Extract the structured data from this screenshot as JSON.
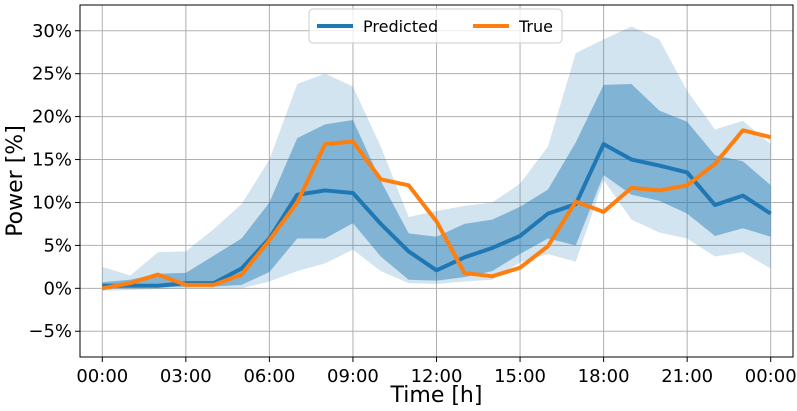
{
  "chart_data": {
    "type": "line",
    "xlabel": "Time [h]",
    "ylabel": "Power [%]",
    "x_ticks": [
      "00:00",
      "03:00",
      "06:00",
      "09:00",
      "12:00",
      "15:00",
      "18:00",
      "21:00",
      "00:00"
    ],
    "y_ticks": [
      "−5%",
      "0%",
      "5%",
      "10%",
      "15%",
      "20%",
      "25%",
      "30%"
    ],
    "xlim": [
      -0.8,
      24.8
    ],
    "ylim": [
      -8,
      33
    ],
    "grid": true,
    "legend_position": "top-center",
    "x_hours": [
      0,
      1,
      2,
      3,
      4,
      5,
      6,
      7,
      8,
      9,
      10,
      11,
      12,
      13,
      14,
      15,
      16,
      17,
      18,
      19,
      20,
      21,
      22,
      23,
      24
    ],
    "series": [
      {
        "name": "Predicted",
        "color": "#1f77b4",
        "values": [
          0.3,
          0.3,
          0.3,
          0.6,
          0.6,
          2.3,
          5.8,
          10.9,
          11.4,
          11.1,
          7.5,
          4.3,
          2.1,
          3.6,
          4.7,
          6.1,
          8.7,
          9.8,
          16.8,
          15.0,
          14.3,
          13.5,
          9.7,
          10.8,
          8.7
        ]
      },
      {
        "name": "True",
        "color": "#ff7f0e",
        "values": [
          0.0,
          0.6,
          1.6,
          0.4,
          0.4,
          1.6,
          5.6,
          10.0,
          16.8,
          17.1,
          12.7,
          12.0,
          7.8,
          1.8,
          1.4,
          2.4,
          4.9,
          10.1,
          8.9,
          11.7,
          11.4,
          12.0,
          14.5,
          18.4,
          17.6
        ]
      }
    ],
    "bands": [
      {
        "color": "#1f77b4",
        "opacity": 0.2,
        "upper": [
          2.5,
          1.5,
          4.2,
          4.3,
          6.9,
          9.8,
          15.0,
          23.8,
          25.0,
          23.5,
          16.5,
          8.3,
          9.0,
          9.6,
          10.0,
          12.2,
          16.5,
          27.4,
          29.0,
          30.5,
          29.0,
          23.0,
          18.5,
          19.5,
          16.8
        ],
        "lower": [
          -0.3,
          -0.2,
          -0.1,
          0.0,
          0.0,
          0.0,
          0.8,
          2.0,
          2.9,
          4.5,
          2.0,
          0.6,
          0.5,
          0.8,
          1.0,
          3.0,
          4.0,
          3.1,
          12.6,
          8.0,
          6.5,
          5.8,
          3.7,
          4.2,
          2.3
        ]
      },
      {
        "color": "#1f77b4",
        "opacity": 0.45,
        "upper": [
          0.7,
          1.0,
          1.7,
          1.8,
          3.8,
          5.8,
          10.0,
          17.5,
          19.1,
          19.6,
          12.5,
          6.4,
          6.0,
          7.5,
          8.0,
          9.5,
          11.5,
          17.0,
          23.7,
          23.8,
          20.7,
          19.4,
          15.5,
          14.8,
          12.0
        ],
        "lower": [
          0.0,
          0.1,
          0.1,
          0.2,
          0.2,
          0.4,
          1.9,
          5.8,
          5.8,
          7.6,
          3.7,
          1.0,
          0.9,
          1.3,
          2.0,
          4.0,
          5.8,
          5.0,
          13.2,
          10.9,
          10.2,
          8.7,
          6.1,
          7.0,
          6.0
        ]
      }
    ]
  }
}
